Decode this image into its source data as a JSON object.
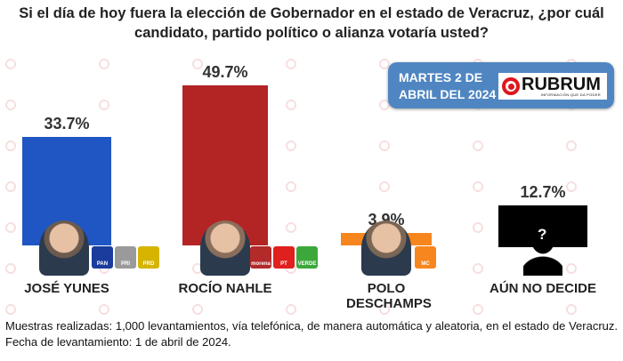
{
  "title": "Si el día de hoy fuera la elección de Gobernador en el estado de Veracruz, ¿por cuál candidato, partido político o alianza votaría usted?",
  "date_box": {
    "line1": "MARTES 2 DE",
    "line2": "ABRIL DEL 2024"
  },
  "logo": {
    "name": "RUBRUM",
    "tagline": "INFORMACIÓN QUE DA PODER"
  },
  "watermark": "RUBRUM",
  "chart_data": {
    "type": "bar",
    "categories": [
      "JOSÉ YUNES",
      "ROCÍO NAHLE",
      "POLO DESCHAMPS",
      "AÚN NO DECIDE"
    ],
    "values": [
      33.7,
      49.7,
      3.9,
      12.7
    ],
    "value_labels": [
      "33.7%",
      "49.7%",
      "3.9%",
      "12.7%"
    ],
    "colors": [
      "#1f56c3",
      "#b32424",
      "#f7861f",
      "#000000"
    ],
    "parties": [
      [
        "PAN",
        "PRI",
        "PRD"
      ],
      [
        "morena",
        "PT",
        "VERDE"
      ],
      [
        "MC"
      ],
      []
    ],
    "ylim": [
      0,
      50
    ],
    "grid": false
  },
  "footer": "Muestras realizadas: 1,000 levantamientos, vía telefónica, de manera automática y aleatoria, en el estado de Veracruz. Fecha de levantamiento: 1 de abril de 2024."
}
